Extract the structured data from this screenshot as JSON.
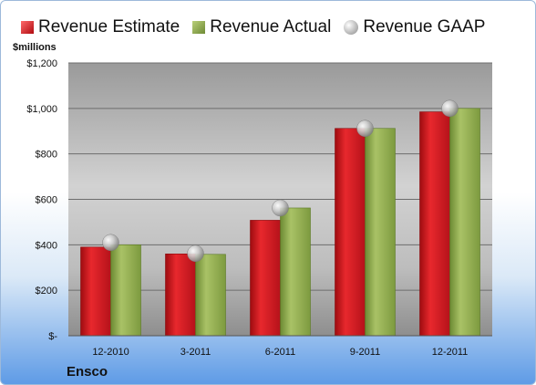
{
  "chart_data": {
    "type": "bar",
    "categories": [
      "12-2010",
      "3-2011",
      "6-2011",
      "9-2011",
      "12-2011"
    ],
    "series": [
      {
        "name": "Revenue Estimate",
        "kind": "bar",
        "color": "#d0161b",
        "values": [
          390,
          360,
          508,
          912,
          985
        ]
      },
      {
        "name": "Revenue Actual",
        "kind": "bar",
        "color": "#8fac4b",
        "values": [
          400,
          358,
          562,
          912,
          1000
        ]
      },
      {
        "name": "Revenue GAAP",
        "kind": "point",
        "color": "#b0b0b0",
        "values": [
          410,
          362,
          562,
          912,
          1000
        ]
      }
    ],
    "ylabel": "$millions",
    "ylim": [
      0,
      1200
    ],
    "yticks": [
      0,
      200,
      400,
      600,
      800,
      1000,
      1200
    ],
    "ytick_labels": [
      "$-",
      "$200",
      "$400",
      "$600",
      "$800",
      "$1,000",
      "$1,200"
    ],
    "grid": true,
    "legend_position": "top"
  },
  "legend": {
    "estimate": "Revenue Estimate",
    "actual": "Revenue Actual",
    "gaap": "Revenue GAAP"
  },
  "axis": {
    "unit_label": "$millions"
  },
  "footer": {
    "company": "Ensco"
  }
}
